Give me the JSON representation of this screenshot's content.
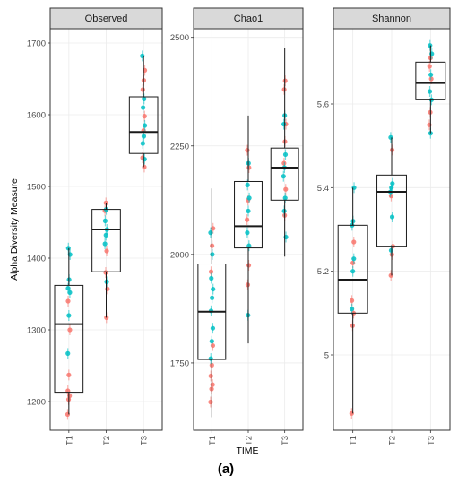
{
  "figure": {
    "caption": "(a)",
    "xlabel": "TIME",
    "ylabel": "Alpha Diversity Measure"
  },
  "colors": {
    "series_a": "#F8766D",
    "series_b": "#00BFC4",
    "box_stroke": "#1a1a1a",
    "strip_fill": "#d9d9d9",
    "panel_border": "#333333"
  },
  "chart_data": [
    {
      "type": "box",
      "title": "Observed",
      "categories": [
        "T1",
        "T2",
        "T3"
      ],
      "ylim": [
        1160,
        1720
      ],
      "yticks": [
        1200,
        1300,
        1400,
        1500,
        1600,
        1700
      ],
      "boxes": [
        {
          "category": "T1",
          "min": 1182,
          "q1": 1213,
          "median": 1308,
          "q3": 1362,
          "max": 1414
        },
        {
          "category": "T2",
          "min": 1317,
          "q1": 1381,
          "median": 1440,
          "q3": 1468,
          "max": 1477
        },
        {
          "category": "T3",
          "min": 1527,
          "q1": 1546,
          "median": 1576,
          "q3": 1625,
          "max": 1682
        }
      ],
      "series": [
        {
          "color": "series_a",
          "points": [
            [
              "T1",
              1182
            ],
            [
              "T1",
              1203
            ],
            [
              "T1",
              1208
            ],
            [
              "T1",
              1215
            ],
            [
              "T1",
              1237
            ],
            [
              "T1",
              1300
            ],
            [
              "T1",
              1340
            ],
            [
              "T2",
              1317
            ],
            [
              "T2",
              1357
            ],
            [
              "T2",
              1380
            ],
            [
              "T2",
              1410
            ],
            [
              "T2",
              1466
            ],
            [
              "T2",
              1477
            ],
            [
              "T3",
              1527
            ],
            [
              "T3",
              1540
            ],
            [
              "T3",
              1578
            ],
            [
              "T3",
              1598
            ],
            [
              "T3",
              1635
            ],
            [
              "T3",
              1648
            ],
            [
              "T3",
              1662
            ]
          ]
        },
        {
          "color": "series_b",
          "points": [
            [
              "T1",
              1267
            ],
            [
              "T1",
              1320
            ],
            [
              "T1",
              1352
            ],
            [
              "T1",
              1358
            ],
            [
              "T1",
              1370
            ],
            [
              "T1",
              1405
            ],
            [
              "T1",
              1414
            ],
            [
              "T2",
              1367
            ],
            [
              "T2",
              1420
            ],
            [
              "T2",
              1432
            ],
            [
              "T2",
              1440
            ],
            [
              "T2",
              1452
            ],
            [
              "T2",
              1468
            ],
            [
              "T3",
              1538
            ],
            [
              "T3",
              1560
            ],
            [
              "T3",
              1570
            ],
            [
              "T3",
              1585
            ],
            [
              "T3",
              1610
            ],
            [
              "T3",
              1622
            ],
            [
              "T3",
              1682
            ]
          ]
        }
      ]
    },
    {
      "type": "box",
      "title": "Chao1",
      "categories": [
        "T1",
        "T2",
        "T3"
      ],
      "ylim": [
        1595,
        2520
      ],
      "yticks": [
        1750,
        2000,
        2250,
        2500
      ],
      "boxes": [
        {
          "category": "T1",
          "min": 1625,
          "q1": 1758,
          "median": 1868,
          "q3": 1978,
          "max": 2152
        },
        {
          "category": "T2",
          "min": 1795,
          "q1": 2015,
          "median": 2065,
          "q3": 2168,
          "max": 2320
        },
        {
          "category": "T3",
          "min": 1995,
          "q1": 2125,
          "median": 2200,
          "q3": 2245,
          "max": 2475
        }
      ],
      "series": [
        {
          "color": "series_a",
          "points": [
            [
              "T1",
              1660
            ],
            [
              "T1",
              1690
            ],
            [
              "T1",
              1700
            ],
            [
              "T1",
              1720
            ],
            [
              "T1",
              1745
            ],
            [
              "T1",
              1790
            ],
            [
              "T1",
              1960
            ],
            [
              "T1",
              2020
            ],
            [
              "T1",
              2060
            ],
            [
              "T2",
              1930
            ],
            [
              "T2",
              1975
            ],
            [
              "T2",
              2080
            ],
            [
              "T2",
              2125
            ],
            [
              "T2",
              2200
            ],
            [
              "T2",
              2240
            ],
            [
              "T3",
              2090
            ],
            [
              "T3",
              2150
            ],
            [
              "T3",
              2210
            ],
            [
              "T3",
              2260
            ],
            [
              "T3",
              2300
            ],
            [
              "T3",
              2380
            ],
            [
              "T3",
              2400
            ]
          ]
        },
        {
          "color": "series_b",
          "points": [
            [
              "T1",
              1760
            ],
            [
              "T1",
              1800
            ],
            [
              "T1",
              1830
            ],
            [
              "T1",
              1870
            ],
            [
              "T1",
              1900
            ],
            [
              "T1",
              1920
            ],
            [
              "T1",
              1945
            ],
            [
              "T1",
              2000
            ],
            [
              "T1",
              2050
            ],
            [
              "T2",
              1860
            ],
            [
              "T2",
              2020
            ],
            [
              "T2",
              2050
            ],
            [
              "T2",
              2100
            ],
            [
              "T2",
              2130
            ],
            [
              "T2",
              2160
            ],
            [
              "T2",
              2210
            ],
            [
              "T3",
              2040
            ],
            [
              "T3",
              2100
            ],
            [
              "T3",
              2130
            ],
            [
              "T3",
              2180
            ],
            [
              "T3",
              2200
            ],
            [
              "T3",
              2230
            ],
            [
              "T3",
              2300
            ],
            [
              "T3",
              2320
            ]
          ]
        }
      ]
    },
    {
      "type": "box",
      "title": "Shannon",
      "categories": [
        "T1",
        "T2",
        "T3"
      ],
      "ylim": [
        4.82,
        5.78
      ],
      "yticks": [
        5.0,
        5.2,
        5.4,
        5.6
      ],
      "boxes": [
        {
          "category": "T1",
          "min": 4.86,
          "q1": 5.1,
          "median": 5.18,
          "q3": 5.31,
          "max": 5.4
        },
        {
          "category": "T2",
          "min": 5.19,
          "q1": 5.26,
          "median": 5.39,
          "q3": 5.43,
          "max": 5.52
        },
        {
          "category": "T3",
          "min": 5.53,
          "q1": 5.61,
          "median": 5.65,
          "q3": 5.7,
          "max": 5.74
        }
      ],
      "series": [
        {
          "color": "series_a",
          "points": [
            [
              "T1",
              4.86
            ],
            [
              "T1",
              5.07
            ],
            [
              "T1",
              5.1
            ],
            [
              "T1",
              5.13
            ],
            [
              "T1",
              5.22
            ],
            [
              "T1",
              5.27
            ],
            [
              "T2",
              5.19
            ],
            [
              "T2",
              5.24
            ],
            [
              "T2",
              5.26
            ],
            [
              "T2",
              5.38
            ],
            [
              "T2",
              5.49
            ],
            [
              "T3",
              5.55
            ],
            [
              "T3",
              5.58
            ],
            [
              "T3",
              5.66
            ],
            [
              "T3",
              5.69
            ],
            [
              "T3",
              5.71
            ]
          ]
        },
        {
          "color": "series_b",
          "points": [
            [
              "T1",
              5.11
            ],
            [
              "T1",
              5.2
            ],
            [
              "T1",
              5.23
            ],
            [
              "T1",
              5.31
            ],
            [
              "T1",
              5.32
            ],
            [
              "T1",
              5.4
            ],
            [
              "T2",
              5.25
            ],
            [
              "T2",
              5.33
            ],
            [
              "T2",
              5.39
            ],
            [
              "T2",
              5.4
            ],
            [
              "T2",
              5.41
            ],
            [
              "T2",
              5.52
            ],
            [
              "T3",
              5.53
            ],
            [
              "T3",
              5.61
            ],
            [
              "T3",
              5.63
            ],
            [
              "T3",
              5.67
            ],
            [
              "T3",
              5.72
            ],
            [
              "T3",
              5.74
            ]
          ]
        }
      ]
    }
  ]
}
